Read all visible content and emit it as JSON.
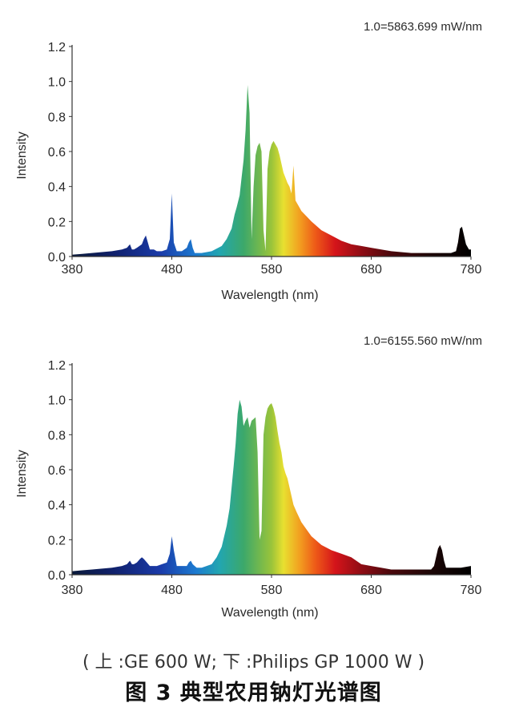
{
  "figure": {
    "caption_sub": "( 上 :GE 600 W; 下 :Philips GP 1000 W )",
    "caption_title": "图 3  典型农用钠灯光谱图"
  },
  "chart_data": [
    {
      "type": "area",
      "title": "",
      "annotation": "1.0=5863.699 mW/nm",
      "xlabel": "Wavelength (nm)",
      "ylabel": "Intensity",
      "xlim": [
        380,
        780
      ],
      "ylim": [
        0,
        1.2
      ],
      "xticks": [
        "380",
        "480",
        "580",
        "680",
        "780"
      ],
      "yticks": [
        "0.0",
        "0.2",
        "0.4",
        "0.6",
        "0.8",
        "1.0",
        "1.2"
      ],
      "grid": false,
      "fill": "spectral gradient",
      "x": [
        380,
        390,
        400,
        410,
        420,
        430,
        435,
        438,
        440,
        442,
        445,
        450,
        452,
        454,
        456,
        458,
        460,
        462,
        465,
        470,
        475,
        478,
        480,
        482,
        485,
        490,
        495,
        497,
        499,
        501,
        503,
        505,
        510,
        520,
        530,
        535,
        540,
        543,
        545,
        548,
        550,
        552,
        554,
        556,
        558,
        560,
        562,
        564,
        566,
        568,
        570,
        572,
        574,
        576,
        578,
        580,
        582,
        584,
        586,
        588,
        590,
        592,
        594,
        596,
        598,
        600,
        602,
        604,
        606,
        608,
        610,
        615,
        620,
        630,
        640,
        650,
        660,
        670,
        680,
        690,
        700,
        710,
        720,
        730,
        740,
        750,
        760,
        765,
        767,
        769,
        771,
        773,
        775,
        778,
        780
      ],
      "values": [
        0.01,
        0.015,
        0.02,
        0.025,
        0.03,
        0.04,
        0.05,
        0.07,
        0.04,
        0.04,
        0.05,
        0.07,
        0.1,
        0.12,
        0.08,
        0.04,
        0.04,
        0.04,
        0.03,
        0.03,
        0.04,
        0.1,
        0.36,
        0.08,
        0.03,
        0.03,
        0.05,
        0.08,
        0.1,
        0.05,
        0.02,
        0.02,
        0.02,
        0.03,
        0.06,
        0.1,
        0.16,
        0.24,
        0.28,
        0.35,
        0.45,
        0.55,
        0.72,
        0.98,
        0.82,
        0.1,
        0.4,
        0.58,
        0.63,
        0.65,
        0.6,
        0.15,
        0.03,
        0.5,
        0.6,
        0.64,
        0.66,
        0.64,
        0.62,
        0.58,
        0.53,
        0.48,
        0.45,
        0.42,
        0.4,
        0.36,
        0.52,
        0.32,
        0.3,
        0.28,
        0.26,
        0.23,
        0.2,
        0.15,
        0.12,
        0.09,
        0.07,
        0.06,
        0.05,
        0.04,
        0.03,
        0.025,
        0.02,
        0.02,
        0.02,
        0.02,
        0.02,
        0.03,
        0.08,
        0.16,
        0.17,
        0.12,
        0.07,
        0.04,
        0.04
      ]
    },
    {
      "type": "area",
      "title": "",
      "annotation": "1.0=6155.560 mW/nm",
      "xlabel": "Wavelength (nm)",
      "ylabel": "Intensity",
      "xlim": [
        380,
        780
      ],
      "ylim": [
        0,
        1.2
      ],
      "xticks": [
        "380",
        "480",
        "580",
        "680",
        "780"
      ],
      "yticks": [
        "0.0",
        "0.2",
        "0.4",
        "0.6",
        "0.8",
        "1.0",
        "1.2"
      ],
      "grid": false,
      "fill": "spectral gradient",
      "x": [
        380,
        390,
        400,
        410,
        420,
        430,
        435,
        438,
        440,
        442,
        445,
        448,
        450,
        452,
        455,
        458,
        460,
        465,
        470,
        475,
        478,
        480,
        482,
        485,
        490,
        495,
        497,
        499,
        501,
        503,
        505,
        510,
        520,
        525,
        530,
        535,
        538,
        540,
        542,
        544,
        546,
        548,
        550,
        552,
        554,
        556,
        558,
        560,
        562,
        564,
        566,
        568,
        570,
        572,
        574,
        576,
        578,
        580,
        582,
        584,
        586,
        588,
        590,
        592,
        594,
        596,
        598,
        600,
        602,
        605,
        610,
        620,
        630,
        640,
        650,
        660,
        670,
        680,
        690,
        700,
        710,
        720,
        730,
        740,
        743,
        745,
        747,
        749,
        751,
        753,
        755,
        760,
        770,
        780
      ],
      "values": [
        0.02,
        0.025,
        0.03,
        0.035,
        0.04,
        0.05,
        0.06,
        0.08,
        0.06,
        0.06,
        0.07,
        0.09,
        0.1,
        0.09,
        0.07,
        0.05,
        0.05,
        0.05,
        0.06,
        0.07,
        0.12,
        0.22,
        0.14,
        0.05,
        0.05,
        0.05,
        0.07,
        0.08,
        0.06,
        0.05,
        0.04,
        0.04,
        0.06,
        0.1,
        0.16,
        0.28,
        0.38,
        0.5,
        0.62,
        0.75,
        0.92,
        1.0,
        0.96,
        0.85,
        0.88,
        0.9,
        0.84,
        0.88,
        0.89,
        0.9,
        0.7,
        0.2,
        0.25,
        0.8,
        0.9,
        0.95,
        0.97,
        0.98,
        0.95,
        0.9,
        0.82,
        0.75,
        0.7,
        0.62,
        0.58,
        0.55,
        0.5,
        0.45,
        0.4,
        0.36,
        0.3,
        0.22,
        0.17,
        0.14,
        0.12,
        0.1,
        0.06,
        0.05,
        0.04,
        0.03,
        0.03,
        0.03,
        0.03,
        0.03,
        0.05,
        0.1,
        0.15,
        0.17,
        0.14,
        0.08,
        0.04,
        0.04,
        0.04,
        0.05
      ]
    }
  ]
}
